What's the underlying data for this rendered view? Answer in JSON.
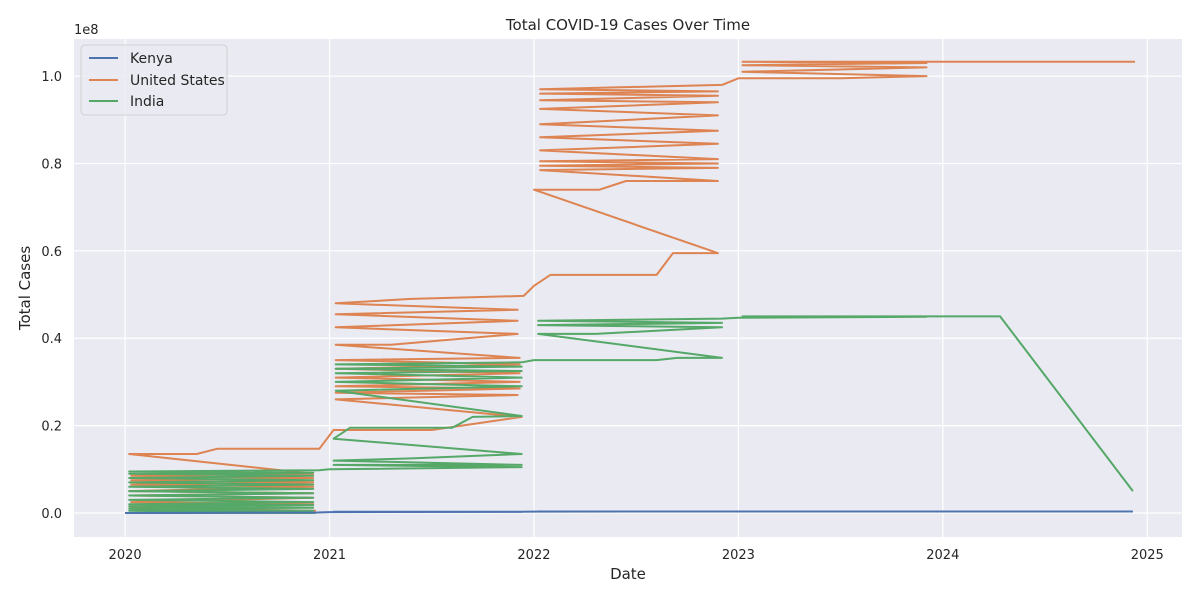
{
  "chart_data": {
    "type": "line",
    "title": "Total COVID-19 Cases Over Time",
    "xlabel": "Date",
    "ylabel": "Total Cases",
    "y_multiplier_label": "1e8",
    "xlim": [
      2019.75,
      2025.17
    ],
    "ylim": [
      -0.055,
      1.085
    ],
    "x_ticks": [
      {
        "value": 2020,
        "label": "2020"
      },
      {
        "value": 2021,
        "label": "2021"
      },
      {
        "value": 2022,
        "label": "2022"
      },
      {
        "value": 2023,
        "label": "2023"
      },
      {
        "value": 2024,
        "label": "2024"
      },
      {
        "value": 2025,
        "label": "2025"
      }
    ],
    "y_ticks": [
      {
        "value": 0.0,
        "label": "0.0"
      },
      {
        "value": 0.2,
        "label": "0.2"
      },
      {
        "value": 0.4,
        "label": "0.4"
      },
      {
        "value": 0.6,
        "label": "0.6"
      },
      {
        "value": 0.8,
        "label": "0.8"
      },
      {
        "value": 1.0,
        "label": "1.0"
      }
    ],
    "grid": true,
    "legend_position": "top-left",
    "background_color": "#eaeaf2",
    "series": [
      {
        "name": "Kenya",
        "color": "#4c72b0",
        "points": [
          [
            2020.0,
            0.0
          ],
          [
            2020.94,
            0.001
          ],
          [
            2021.0,
            0.002
          ],
          [
            2021.94,
            0.0025
          ],
          [
            2021.02,
            0.0028
          ],
          [
            2021.94,
            0.003
          ],
          [
            2022.0,
            0.0032
          ],
          [
            2022.92,
            0.0033
          ],
          [
            2022.02,
            0.0034
          ],
          [
            2022.92,
            0.0034
          ],
          [
            2023.0,
            0.0034
          ],
          [
            2023.95,
            0.0034
          ],
          [
            2024.0,
            0.0034
          ],
          [
            2024.93,
            0.0034
          ]
        ]
      },
      {
        "name": "United States",
        "color": "#dd8452",
        "points": [
          [
            2020.02,
            0.0
          ],
          [
            2020.93,
            0.005
          ],
          [
            2020.03,
            0.012
          ],
          [
            2020.92,
            0.02
          ],
          [
            2020.03,
            0.025
          ],
          [
            2020.92,
            0.035
          ],
          [
            2020.03,
            0.04
          ],
          [
            2020.92,
            0.045
          ],
          [
            2020.02,
            0.05
          ],
          [
            2020.92,
            0.06
          ],
          [
            2020.03,
            0.065
          ],
          [
            2020.92,
            0.07
          ],
          [
            2020.03,
            0.075
          ],
          [
            2020.92,
            0.08
          ],
          [
            2020.03,
            0.085
          ],
          [
            2020.92,
            0.09
          ],
          [
            2020.02,
            0.135
          ],
          [
            2020.35,
            0.135
          ],
          [
            2020.45,
            0.147
          ],
          [
            2020.95,
            0.147
          ],
          [
            2021.02,
            0.19
          ],
          [
            2021.5,
            0.19
          ],
          [
            2021.94,
            0.22
          ],
          [
            2021.03,
            0.26
          ],
          [
            2021.92,
            0.27
          ],
          [
            2021.03,
            0.275
          ],
          [
            2021.93,
            0.285
          ],
          [
            2021.03,
            0.29
          ],
          [
            2021.93,
            0.3
          ],
          [
            2021.03,
            0.31
          ],
          [
            2021.93,
            0.32
          ],
          [
            2021.03,
            0.33
          ],
          [
            2021.93,
            0.34
          ],
          [
            2021.03,
            0.35
          ],
          [
            2021.93,
            0.355
          ],
          [
            2021.03,
            0.385
          ],
          [
            2021.3,
            0.385
          ],
          [
            2021.92,
            0.41
          ],
          [
            2021.03,
            0.425
          ],
          [
            2021.92,
            0.44
          ],
          [
            2021.03,
            0.455
          ],
          [
            2021.92,
            0.465
          ],
          [
            2021.03,
            0.48
          ],
          [
            2021.4,
            0.49
          ],
          [
            2021.95,
            0.497
          ],
          [
            2022.0,
            0.52
          ],
          [
            2022.08,
            0.545
          ],
          [
            2022.6,
            0.545
          ],
          [
            2022.68,
            0.595
          ],
          [
            2022.9,
            0.595
          ],
          [
            2022.0,
            0.74
          ],
          [
            2022.32,
            0.74
          ],
          [
            2022.45,
            0.76
          ],
          [
            2022.9,
            0.76
          ],
          [
            2022.03,
            0.785
          ],
          [
            2022.9,
            0.79
          ],
          [
            2022.03,
            0.795
          ],
          [
            2022.9,
            0.8
          ],
          [
            2022.03,
            0.805
          ],
          [
            2022.9,
            0.81
          ],
          [
            2022.03,
            0.83
          ],
          [
            2022.9,
            0.845
          ],
          [
            2022.03,
            0.86
          ],
          [
            2022.9,
            0.875
          ],
          [
            2022.03,
            0.89
          ],
          [
            2022.9,
            0.91
          ],
          [
            2022.03,
            0.925
          ],
          [
            2022.9,
            0.94
          ],
          [
            2022.03,
            0.945
          ],
          [
            2022.9,
            0.955
          ],
          [
            2022.03,
            0.96
          ],
          [
            2022.9,
            0.965
          ],
          [
            2022.03,
            0.97
          ],
          [
            2022.92,
            0.98
          ],
          [
            2023.0,
            0.995
          ],
          [
            2023.5,
            0.995
          ],
          [
            2023.92,
            1.0
          ],
          [
            2023.02,
            1.01
          ],
          [
            2023.92,
            1.02
          ],
          [
            2023.02,
            1.025
          ],
          [
            2023.92,
            1.03
          ],
          [
            2023.02,
            1.033
          ],
          [
            2024.0,
            1.033
          ],
          [
            2024.94,
            1.033
          ]
        ]
      },
      {
        "name": "India",
        "color": "#55a868",
        "points": [
          [
            2020.0,
            0.0
          ],
          [
            2020.93,
            0.0
          ],
          [
            2020.02,
            0.005
          ],
          [
            2020.92,
            0.005
          ],
          [
            2020.02,
            0.01
          ],
          [
            2020.92,
            0.012
          ],
          [
            2020.02,
            0.015
          ],
          [
            2020.92,
            0.018
          ],
          [
            2020.02,
            0.02
          ],
          [
            2020.92,
            0.025
          ],
          [
            2020.02,
            0.03
          ],
          [
            2020.92,
            0.035
          ],
          [
            2020.02,
            0.04
          ],
          [
            2020.92,
            0.045
          ],
          [
            2020.02,
            0.05
          ],
          [
            2020.92,
            0.055
          ],
          [
            2020.02,
            0.06
          ],
          [
            2020.92,
            0.065
          ],
          [
            2020.02,
            0.07
          ],
          [
            2020.92,
            0.075
          ],
          [
            2020.02,
            0.08
          ],
          [
            2020.92,
            0.085
          ],
          [
            2020.02,
            0.09
          ],
          [
            2020.92,
            0.092
          ],
          [
            2020.02,
            0.095
          ],
          [
            2020.95,
            0.098
          ],
          [
            2021.0,
            0.1
          ],
          [
            2021.94,
            0.105
          ],
          [
            2021.02,
            0.11
          ],
          [
            2021.94,
            0.11
          ],
          [
            2021.02,
            0.12
          ],
          [
            2021.4,
            0.125
          ],
          [
            2021.94,
            0.135
          ],
          [
            2021.02,
            0.17
          ],
          [
            2021.1,
            0.195
          ],
          [
            2021.6,
            0.195
          ],
          [
            2021.7,
            0.22
          ],
          [
            2021.94,
            0.222
          ],
          [
            2021.03,
            0.28
          ],
          [
            2021.94,
            0.29
          ],
          [
            2021.03,
            0.3
          ],
          [
            2021.94,
            0.31
          ],
          [
            2021.03,
            0.32
          ],
          [
            2021.94,
            0.325
          ],
          [
            2021.03,
            0.33
          ],
          [
            2021.94,
            0.335
          ],
          [
            2021.03,
            0.34
          ],
          [
            2021.94,
            0.345
          ],
          [
            2022.0,
            0.35
          ],
          [
            2022.6,
            0.35
          ],
          [
            2022.7,
            0.355
          ],
          [
            2022.92,
            0.355
          ],
          [
            2022.02,
            0.41
          ],
          [
            2022.3,
            0.41
          ],
          [
            2022.92,
            0.425
          ],
          [
            2022.02,
            0.43
          ],
          [
            2022.92,
            0.435
          ],
          [
            2022.02,
            0.44
          ],
          [
            2022.92,
            0.445
          ],
          [
            2023.0,
            0.447
          ],
          [
            2023.92,
            0.449
          ],
          [
            2023.02,
            0.45
          ],
          [
            2024.0,
            0.45
          ],
          [
            2024.28,
            0.45
          ],
          [
            2024.93,
            0.05
          ]
        ]
      }
    ]
  }
}
